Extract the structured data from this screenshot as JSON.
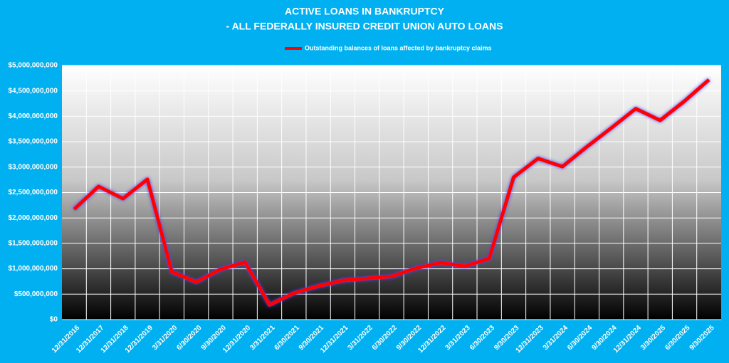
{
  "chart_data": {
    "type": "line",
    "title": "ACTIVE LOANS IN BANKRUPTCY",
    "subtitle": "- ALL FEDERALLY INSURED CREDIT UNION AUTO LOANS",
    "categories": [
      "12/31/2016",
      "12/31/2017",
      "12/31/2018",
      "12/31/2019",
      "3/31/2020",
      "6/30/2020",
      "9/30/2020",
      "12/31/2020",
      "3/31/2021",
      "6/30/2021",
      "9/30/2021",
      "12/31/2021",
      "3/31/2022",
      "6/30/2022",
      "9/30/2022",
      "12/31/2022",
      "3/31/2023",
      "6/30/2023",
      "9/30/2023",
      "12/31/2023",
      "3/31/2024",
      "6/30/2024",
      "9/30/2024",
      "12/31/2024",
      "3/30/2025",
      "6/30/2025",
      "9/30/2025"
    ],
    "series": [
      {
        "name": "Outstanding balances of loans affected by bankruptcy claims",
        "color": "#ff0000",
        "values": [
          2170000000,
          2620000000,
          2380000000,
          2760000000,
          940000000,
          740000000,
          990000000,
          1130000000,
          290000000,
          520000000,
          660000000,
          770000000,
          810000000,
          850000000,
          1010000000,
          1120000000,
          1050000000,
          1200000000,
          2800000000,
          3170000000,
          3010000000,
          3400000000,
          3770000000,
          4150000000,
          3920000000,
          4300000000,
          4720000000
        ]
      }
    ],
    "ylim": [
      0,
      5000000000
    ],
    "yticks": [
      {
        "value": 0,
        "label": "$0"
      },
      {
        "value": 500000000,
        "label": "$500,000,000"
      },
      {
        "value": 1000000000,
        "label": "$1,000,000,000"
      },
      {
        "value": 1500000000,
        "label": "$1,500,000,000"
      },
      {
        "value": 2000000000,
        "label": "$2,000,000,000"
      },
      {
        "value": 2500000000,
        "label": "$2,500,000,000"
      },
      {
        "value": 3000000000,
        "label": "$3,000,000,000"
      },
      {
        "value": 3500000000,
        "label": "$3,500,000,000"
      },
      {
        "value": 4000000000,
        "label": "$4,000,000,000"
      },
      {
        "value": 4500000000,
        "label": "$4,500,000,000"
      },
      {
        "value": 5000000000,
        "label": "$5,000,000,000"
      }
    ],
    "grid": true,
    "legend": "top"
  }
}
